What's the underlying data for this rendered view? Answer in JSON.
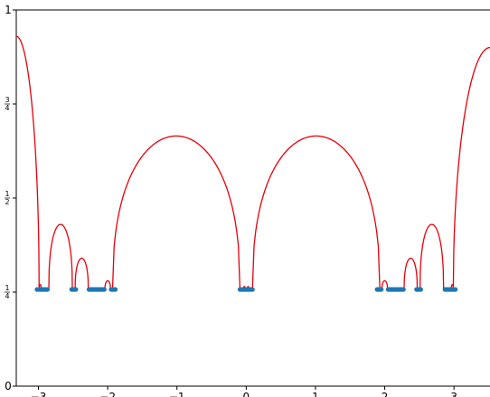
{
  "chart_data": {
    "type": "line",
    "title": "",
    "xlabel": "",
    "ylabel": "",
    "xlim": [
      -3.32,
      3.52
    ],
    "ylim": [
      0,
      1
    ],
    "grid": false,
    "line_color": "#e8000b",
    "point_color": "#1f77b4",
    "x_ticks": [
      {
        "value": -3,
        "label": "−3"
      },
      {
        "value": -2,
        "label": "−2"
      },
      {
        "value": -1,
        "label": "−1"
      },
      {
        "value": 0,
        "label": "0"
      },
      {
        "value": 1,
        "label": "1"
      },
      {
        "value": 2,
        "label": "2"
      },
      {
        "value": 3,
        "label": "3"
      }
    ],
    "y_ticks": [
      {
        "value": 0,
        "label": "0"
      },
      {
        "value": 0.25,
        "num": "1",
        "den": "4"
      },
      {
        "value": 0.5,
        "num": "1",
        "den": "2"
      },
      {
        "value": 0.75,
        "num": "3",
        "den": "4"
      },
      {
        "value": 1,
        "label": "1"
      }
    ],
    "series": [
      {
        "kind": "curve",
        "segments": [
          {
            "shape": "edge",
            "from": -3.32,
            "to": -2.99,
            "height": 0.93
          },
          {
            "shape": "dome",
            "from": -2.99,
            "to": -2.96,
            "height": 0.27
          },
          {
            "shape": "dome",
            "from": -2.85,
            "to": -2.51,
            "height": 0.43
          },
          {
            "shape": "dome",
            "from": -2.47,
            "to": -2.28,
            "height": 0.34
          },
          {
            "shape": "dome",
            "from": -2.04,
            "to": -1.96,
            "height": 0.28
          },
          {
            "shape": "dome",
            "from": -1.93,
            "to": -0.09,
            "height": 0.665
          },
          {
            "shape": "dome",
            "from": -0.04,
            "to": -0.015,
            "height": 0.265
          },
          {
            "shape": "dome",
            "from": 0.015,
            "to": 0.04,
            "height": 0.265
          },
          {
            "shape": "dome",
            "from": 0.09,
            "to": 1.93,
            "height": 0.665
          },
          {
            "shape": "dome",
            "from": 1.96,
            "to": 2.04,
            "height": 0.28
          },
          {
            "shape": "dome",
            "from": 2.28,
            "to": 2.47,
            "height": 0.34
          },
          {
            "shape": "dome",
            "from": 2.51,
            "to": 2.85,
            "height": 0.43
          },
          {
            "shape": "dome",
            "from": 2.96,
            "to": 2.99,
            "height": 0.27
          },
          {
            "shape": "edge",
            "from": 2.99,
            "to": 3.52,
            "height": 0.9
          }
        ]
      },
      {
        "kind": "points",
        "y": 0.257,
        "x": [
          -3.02,
          -2.99,
          -2.97,
          -2.95,
          -2.93,
          -2.91,
          -2.89,
          -2.87,
          -2.52,
          -2.5,
          -2.48,
          -2.46,
          -2.27,
          -2.25,
          -2.23,
          -2.21,
          -2.19,
          -2.17,
          -2.15,
          -2.13,
          -2.11,
          -2.09,
          -2.07,
          -2.05,
          -1.95,
          -1.93,
          -1.91,
          -1.89,
          -0.09,
          -0.07,
          -0.05,
          -0.03,
          -0.01,
          0.01,
          0.03,
          0.05,
          0.07,
          0.09,
          1.89,
          1.91,
          1.93,
          1.95,
          2.05,
          2.07,
          2.09,
          2.11,
          2.13,
          2.15,
          2.17,
          2.19,
          2.21,
          2.23,
          2.25,
          2.27,
          2.46,
          2.48,
          2.5,
          2.52,
          2.87,
          2.89,
          2.91,
          2.93,
          2.95,
          2.97,
          2.99,
          3.02
        ]
      }
    ]
  }
}
